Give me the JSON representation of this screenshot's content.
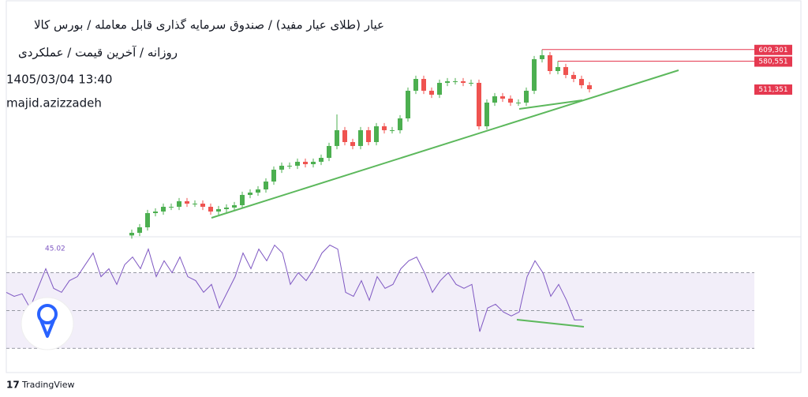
{
  "chart_data": {
    "type": "candlestick",
    "title": "عیار (طلای عیار مفید) / صندوق سرمایه گذاری قابل معامله / بورس کالا",
    "subtitle": "روزانه / آخرین قیمت / عملکردی",
    "date": "1405/03/04 13:40",
    "author": "majid.azizzadeh",
    "up_color": "#4caf50",
    "down_color": "#ef5350",
    "ylim": [
      146700,
      721950
    ],
    "open": [
      150000,
      156500,
      170100,
      205200,
      209100,
      220800,
      220800,
      234500,
      228600,
      228600,
      220800,
      209100,
      215000,
      218900,
      224700,
      250100,
      255900,
      263700,
      283200,
      312500,
      322200,
      322200,
      332000,
      326100,
      332000,
      341700,
      371000,
      410000,
      380700,
      371000,
      410000,
      380700,
      419700,
      410000,
      410000,
      439200,
      507500,
      536700,
      507500,
      497700,
      527000,
      530900,
      530900,
      527000,
      527000,
      419700,
      478200,
      493800,
      488000,
      478200,
      478200,
      507500,
      585500,
      595200,
      556200,
      566000,
      546500,
      536700,
      521100
    ],
    "high": [
      164500,
      178100,
      213200,
      217100,
      228800,
      228800,
      242500,
      242500,
      236600,
      236600,
      228800,
      223000,
      226900,
      232700,
      258100,
      263900,
      271700,
      291200,
      320500,
      330200,
      330200,
      340000,
      340000,
      340000,
      349700,
      379000,
      449000,
      418000,
      388700,
      418000,
      418000,
      427700,
      427700,
      418000,
      447200,
      515500,
      544700,
      544700,
      515500,
      535000,
      538900,
      538900,
      538900,
      535000,
      535000,
      486200,
      501800,
      501800,
      496000,
      486200,
      515500,
      593500,
      609301,
      603200,
      580551,
      574000,
      554500,
      544700,
      529100
    ],
    "low": [
      142000,
      148500,
      162100,
      197200,
      201100,
      212800,
      212800,
      220600,
      220600,
      212800,
      201100,
      201100,
      207000,
      210900,
      216700,
      242100,
      247900,
      255700,
      275200,
      304500,
      314200,
      314200,
      318100,
      318100,
      324000,
      333700,
      363000,
      372700,
      363000,
      363000,
      372700,
      372700,
      402000,
      402000,
      402000,
      431200,
      499500,
      499500,
      489700,
      489700,
      519000,
      522900,
      519000,
      519000,
      411700,
      411700,
      470200,
      480000,
      470200,
      470200,
      470200,
      499500,
      577500,
      548200,
      548200,
      538500,
      528700,
      513100,
      503300
    ],
    "close": [
      156500,
      170100,
      205200,
      209100,
      220800,
      220800,
      234500,
      228600,
      228600,
      220800,
      209100,
      215000,
      218900,
      224700,
      250100,
      255900,
      263700,
      283200,
      312500,
      322200,
      322200,
      332000,
      326100,
      332000,
      341700,
      371000,
      410000,
      380700,
      371000,
      410000,
      380700,
      419700,
      410000,
      410000,
      439200,
      507500,
      536700,
      507500,
      497700,
      527000,
      530900,
      530900,
      527000,
      527000,
      419700,
      478200,
      493800,
      488000,
      478200,
      478200,
      507500,
      585500,
      595200,
      556200,
      566000,
      546500,
      536700,
      521100,
      511351
    ],
    "price_levels": [
      {
        "value": 609301,
        "label": "609,301"
      },
      {
        "value": 580551,
        "label": "580,551"
      },
      {
        "value": 511351,
        "label": "511,351"
      }
    ],
    "level_color": "#e53950",
    "rsi": {
      "color": "#7e57c2",
      "ylim": [
        18,
        89
      ],
      "bands": [
        70,
        50,
        30
      ],
      "values": [
        59.6,
        57.5,
        58.8,
        51.3,
        61.7,
        72.1,
        61.7,
        59.6,
        65.8,
        67.9,
        74.2,
        80.4,
        67.9,
        72.1,
        63.8,
        74.2,
        78.3,
        72.1,
        82.5,
        67.9,
        76.3,
        70,
        78.3,
        67.9,
        65.8,
        59.6,
        63.8,
        51.3,
        59.6,
        67.9,
        80.4,
        72.1,
        82.5,
        76.3,
        84.6,
        80.4,
        63.8,
        70,
        65.8,
        72.1,
        80.4,
        84.6,
        82.5,
        59.6,
        57.5,
        65.8,
        55.4,
        67.9,
        61.7,
        63.8,
        72.1,
        76.3,
        78.3,
        70,
        59.6,
        65.8,
        70,
        63.8,
        61.7,
        63.8,
        38.8,
        51.3,
        53.3,
        49.2,
        47.1,
        49.2,
        67.9,
        76.3,
        70,
        57.5,
        63.8,
        55.4,
        45,
        45.02
      ]
    }
  },
  "footer": "TradingView"
}
